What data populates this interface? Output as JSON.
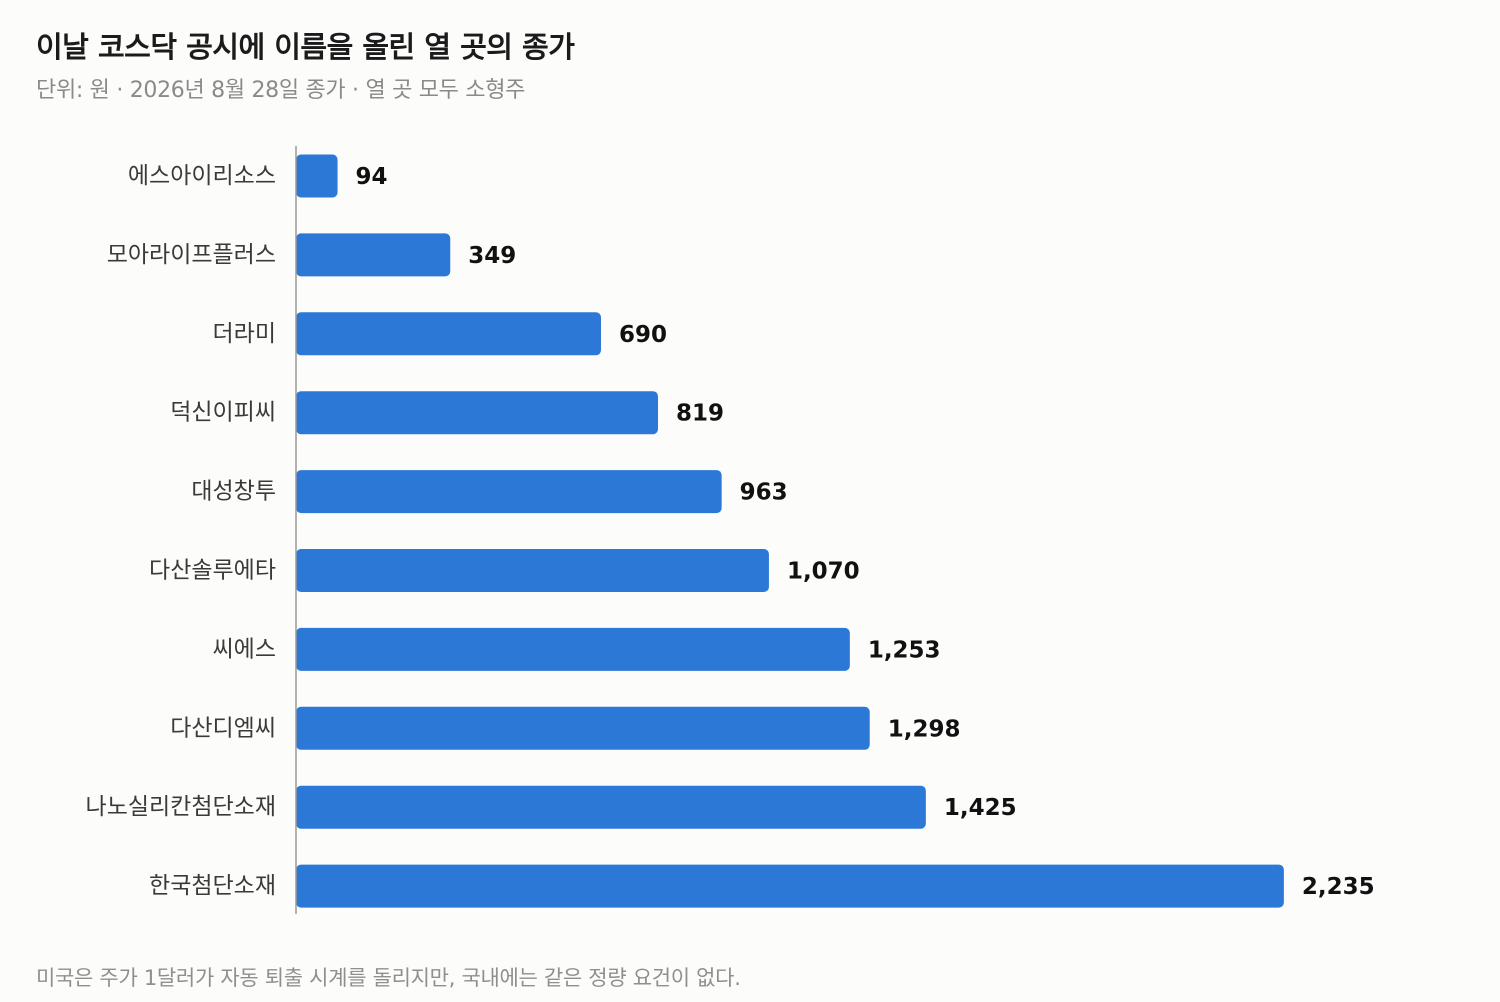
{
  "title": "이날 코스닥 공시에 이름을 올린 열 곳의 종가",
  "subtitle": "단위: 원 · 2026년 8월 28일 종가 · 열 곳 모두 소형주",
  "footnote": "미국은 주가 1달러가 자동 퇴출 시계를 돌리지만, 국내에는 같은 정량 요건이 없다.",
  "colors": {
    "bar": "#2c78d6",
    "axis": "#9a9a9a"
  },
  "chart_data": {
    "type": "bar",
    "orientation": "horizontal",
    "title": "이날 코스닥 공시에 이름을 올린 열 곳의 종가",
    "subtitle": "단위: 원 · 2026년 8월 28일 종가 · 열 곳 모두 소형주",
    "xlabel": "",
    "ylabel": "",
    "xlim": [
      0,
      2700
    ],
    "grid": false,
    "legend": "none",
    "categories": [
      "에스아이리소스",
      "모아라이프플러스",
      "더라미",
      "덕신이피씨",
      "대성창투",
      "다산솔루에타",
      "씨에스",
      "다산디엠씨",
      "나노실리칸첨단소재",
      "한국첨단소재"
    ],
    "values": [
      94,
      349,
      690,
      819,
      963,
      1070,
      1253,
      1298,
      1425,
      2235
    ],
    "value_labels": [
      "94",
      "349",
      "690",
      "819",
      "963",
      "1,070",
      "1,253",
      "1,298",
      "1,425",
      "2,235"
    ]
  }
}
